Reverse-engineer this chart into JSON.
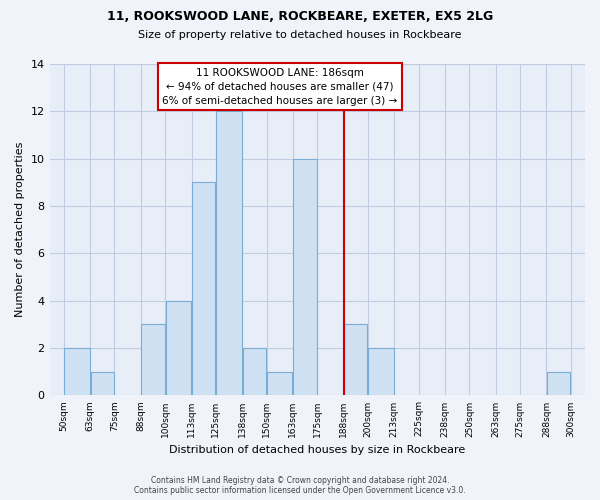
{
  "title": "11, ROOKSWOOD LANE, ROCKBEARE, EXETER, EX5 2LG",
  "subtitle": "Size of property relative to detached houses in Rockbeare",
  "xlabel": "Distribution of detached houses by size in Rockbeare",
  "ylabel": "Number of detached properties",
  "bar_edges": [
    50,
    63,
    75,
    88,
    100,
    113,
    125,
    138,
    150,
    163,
    175,
    188,
    200,
    213,
    225,
    238,
    250,
    263,
    275,
    288,
    300
  ],
  "bar_heights": [
    2,
    1,
    0,
    3,
    4,
    9,
    12,
    2,
    1,
    10,
    0,
    3,
    2,
    0,
    0,
    0,
    0,
    0,
    0,
    1
  ],
  "bar_color": "#cfe0f3",
  "bar_edgecolor": "#7aadd4",
  "vline_x": 188,
  "vline_color": "#cc0000",
  "annotation_title": "11 ROOKSWOOD LANE: 186sqm",
  "annotation_line1": "← 94% of detached houses are smaller (47)",
  "annotation_line2": "6% of semi-detached houses are larger (3) →",
  "annotation_box_edgecolor": "#cc0000",
  "ylim": [
    0,
    14
  ],
  "yticks": [
    0,
    2,
    4,
    6,
    8,
    10,
    12,
    14
  ],
  "tick_labels": [
    "50sqm",
    "63sqm",
    "75sqm",
    "88sqm",
    "100sqm",
    "113sqm",
    "125sqm",
    "138sqm",
    "150sqm",
    "163sqm",
    "175sqm",
    "188sqm",
    "200sqm",
    "213sqm",
    "225sqm",
    "238sqm",
    "250sqm",
    "263sqm",
    "275sqm",
    "288sqm",
    "300sqm"
  ],
  "footer1": "Contains HM Land Registry data © Crown copyright and database right 2024.",
  "footer2": "Contains public sector information licensed under the Open Government Licence v3.0.",
  "background_color": "#f0f4fa",
  "plot_bg_color": "#e8eef8",
  "grid_color": "#c0cce0"
}
